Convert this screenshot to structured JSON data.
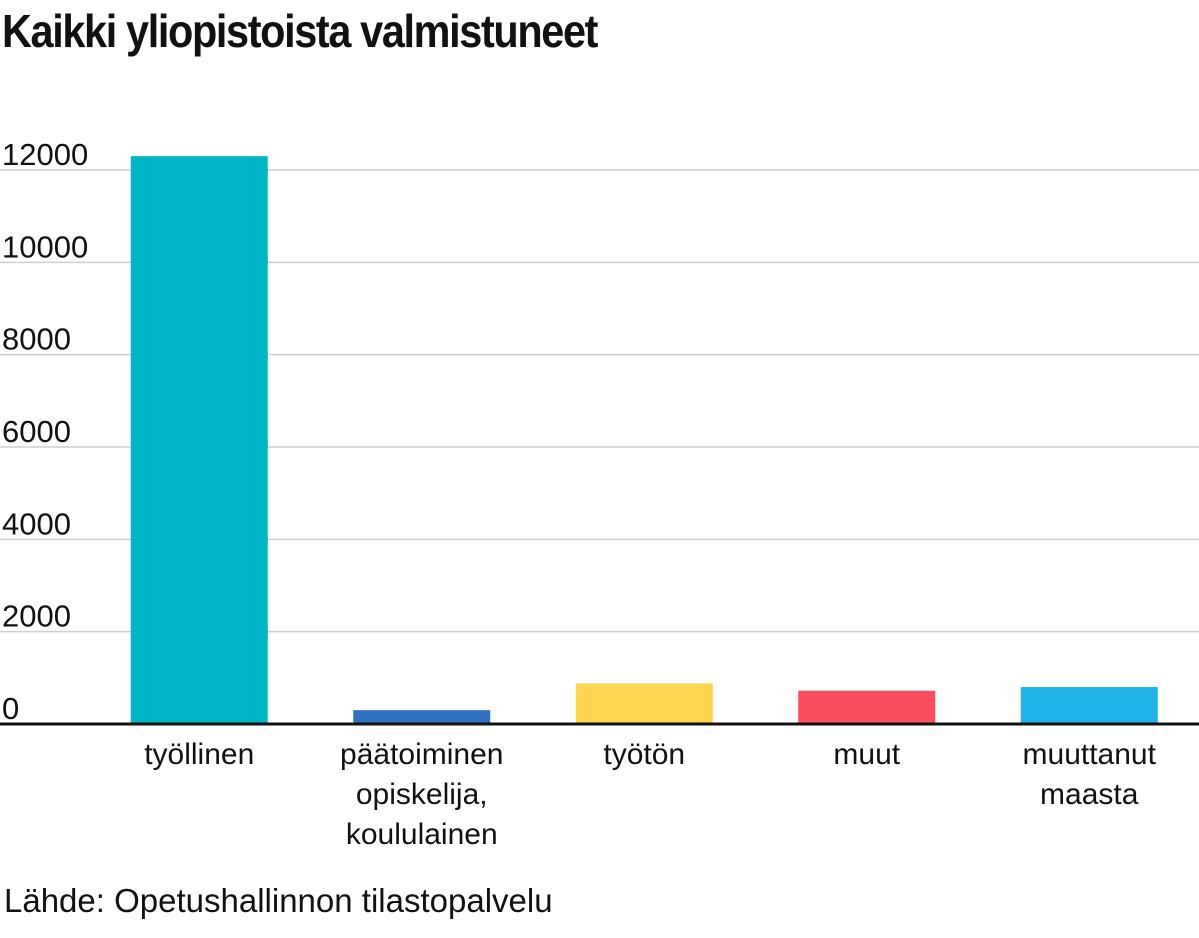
{
  "chart_data": {
    "type": "bar",
    "title": "Kaikki yliopistoista valmistuneet",
    "source": "Lähde: Opetushallinnon tilastopalvelu",
    "categories": [
      [
        "työllinen"
      ],
      [
        "päätoiminen",
        "opiskelija,",
        "koululainen"
      ],
      [
        "työtön"
      ],
      [
        "muut"
      ],
      [
        "muuttanut",
        "maasta"
      ]
    ],
    "values": [
      12300,
      300,
      880,
      720,
      800
    ],
    "colors": [
      "#00b5c8",
      "#2f72c4",
      "#ffd44f",
      "#fc4d5c",
      "#1fb2e8"
    ],
    "ylim": [
      0,
      12000
    ],
    "yticks": [
      0,
      2000,
      4000,
      6000,
      8000,
      10000,
      12000
    ],
    "xlabel": "",
    "ylabel": "",
    "grid": true
  }
}
